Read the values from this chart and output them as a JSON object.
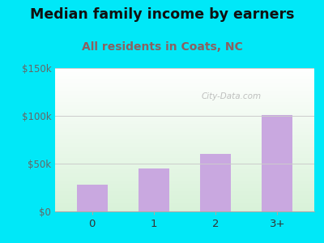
{
  "title": "Median family income by earners",
  "subtitle": "All residents in Coats, NC",
  "categories": [
    "0",
    "1",
    "2",
    "3+"
  ],
  "values": [
    28000,
    45000,
    60000,
    101000
  ],
  "bar_color": "#c9a8e0",
  "title_fontsize": 12.5,
  "subtitle_fontsize": 10,
  "subtitle_color": "#8b6060",
  "title_color": "#111111",
  "background_outer": "#00e8f8",
  "ylim": [
    0,
    150000
  ],
  "yticks": [
    0,
    50000,
    100000,
    150000
  ],
  "ytick_labels": [
    "$0",
    "$50k",
    "$100k",
    "$150k"
  ],
  "watermark": "City-Data.com",
  "grid_color": "#cccccc"
}
